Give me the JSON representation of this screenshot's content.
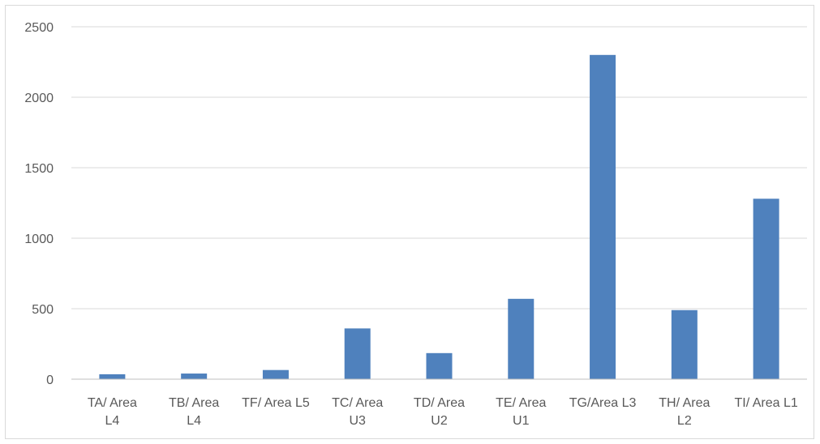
{
  "chart_data": {
    "type": "bar",
    "title": "",
    "xlabel": "",
    "ylabel": "",
    "categories": [
      [
        "TA/ Area",
        "L4"
      ],
      [
        "TB/ Area",
        "L4"
      ],
      [
        "TF/ Area L5"
      ],
      [
        "TC/ Area",
        "U3"
      ],
      [
        "TD/ Area",
        "U2"
      ],
      [
        "TE/ Area",
        "U1"
      ],
      [
        "TG/Area L3"
      ],
      [
        "TH/ Area",
        "L2"
      ],
      [
        "TI/ Area L1"
      ]
    ],
    "values": [
      35,
      40,
      65,
      360,
      185,
      570,
      2300,
      490,
      1280
    ],
    "ylim": [
      0,
      2500
    ],
    "yticks": [
      0,
      500,
      1000,
      1500,
      2000,
      2500
    ],
    "grid": true,
    "legend": "none",
    "colors": {
      "bar": "#4f81bd",
      "grid": "#d9d9d9",
      "axis": "#bfbfbf",
      "text": "#595959"
    }
  }
}
